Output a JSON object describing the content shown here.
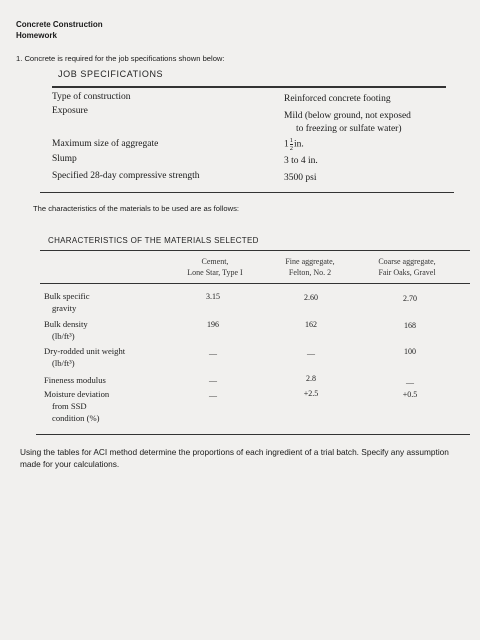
{
  "header": {
    "course": "Concrete Construction",
    "type": "Homework"
  },
  "question": "1.  Concrete is required for the job specifications shown below:",
  "spec": {
    "title": "JOB SPECIFICATIONS",
    "rows": [
      {
        "label": "Type of construction",
        "value": "Reinforced concrete footing"
      },
      {
        "label": "Exposure",
        "value": "Mild (below ground, not exposed"
      },
      {
        "label": "",
        "value": "to freezing or sulfate water)"
      },
      {
        "label": "Maximum size of aggregate",
        "value_whole": "1",
        "value_num": "1",
        "value_den": "2",
        "value_unit": "in."
      },
      {
        "label": "Slump",
        "value": "3 to 4 in."
      },
      {
        "label": "Specified 28-day compressive strength",
        "value": "3500 psi"
      }
    ]
  },
  "chars_intro": "The characteristics of the materials to be used are as follows:",
  "chars": {
    "title": "CHARACTERISTICS OF THE MATERIALS SELECTED",
    "columns": [
      {
        "line1": "Cement,",
        "line2": "Lone Star, Type I"
      },
      {
        "line1": "Fine aggregate,",
        "line2": "Felton, No. 2"
      },
      {
        "line1": "Coarse aggregate,",
        "line2": "Fair Oaks, Gravel"
      }
    ],
    "rows": [
      {
        "l1": "Bulk specific",
        "l2": "gravity",
        "c1": "3.15",
        "c2": "2.60",
        "c3": "2.70"
      },
      {
        "l1": "Bulk density",
        "l2": "(lb/ft³)",
        "c1": "196",
        "c2": "162",
        "c3": "168"
      },
      {
        "l1": "Dry-rodded unit weight",
        "l2": "(lb/ft³)",
        "c1": "—",
        "c2": "—",
        "c3": "100"
      },
      {
        "l1": "Fineness modulus",
        "l2": "",
        "c1": "—",
        "c2": "2.8",
        "c3": "—"
      },
      {
        "l1": "Moisture deviation",
        "l2": "from SSD",
        "l3": "condition (%)",
        "c1": "—",
        "c2": "+2.5",
        "c3": "+0.5"
      }
    ]
  },
  "footer": "Using the tables for ACI method determine the proportions of each ingredient of a trial batch. Specify any assumption made for your calculations."
}
